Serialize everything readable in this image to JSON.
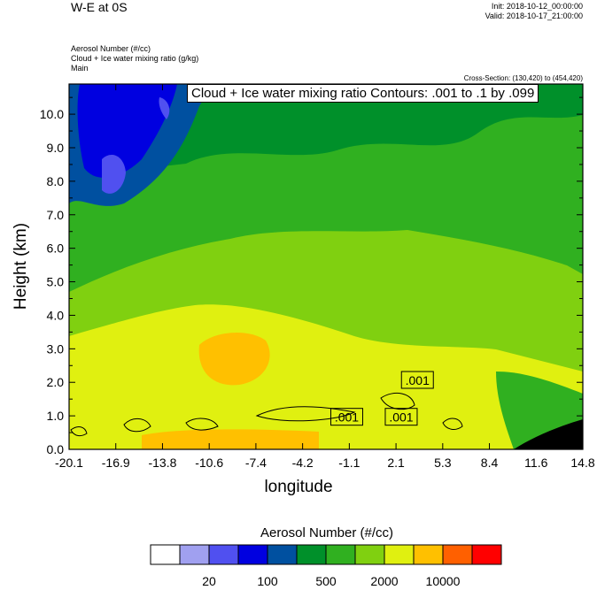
{
  "header": {
    "title": "W-E at 0S",
    "init": "Init: 2018-10-12_00:00:00",
    "valid": "Valid: 2018-10-17_21:00:00",
    "field1": "Aerosol Number   (#/cc)",
    "field2": "Cloud + Ice water mixing ratio   (g/kg)",
    "field3": "Main",
    "cross_section": "Cross-Section: (130,420) to (454,420)"
  },
  "chart_data": {
    "type": "heatmap",
    "title": "",
    "contour_label": "Cloud + Ice water mixing ratio Contours: .001 to .1 by .099",
    "xlabel": "longitude",
    "ylabel": "Height (km)",
    "xlim": [
      -20.1,
      14.8
    ],
    "ylim": [
      0.0,
      10.9
    ],
    "x_ticks": [
      "-20.1",
      "-16.9",
      "-13.8",
      "-10.6",
      "-7.4",
      "-4.2",
      "-1.1",
      "2.1",
      "5.3",
      "8.4",
      "11.6",
      "14.8"
    ],
    "y_ticks": [
      "0.0",
      "1.0",
      "2.0",
      "3.0",
      "4.0",
      "5.0",
      "6.0",
      "7.0",
      "8.0",
      "9.0",
      "10.0"
    ],
    "contour_value_labels": [
      ".001",
      ".001",
      ".001"
    ],
    "colorbar": {
      "title": "Aerosol Number  (#/cc)",
      "colors": [
        "#ffffff",
        "#a0a0f0",
        "#5050f0",
        "#0000e0",
        "#0050a0",
        "#00902a",
        "#30b020",
        "#80d010",
        "#e0f010",
        "#ffc000",
        "#ff6000",
        "#ff0000"
      ],
      "tick_labels": [
        "20",
        "100",
        "500",
        "2000",
        "10000"
      ]
    }
  }
}
